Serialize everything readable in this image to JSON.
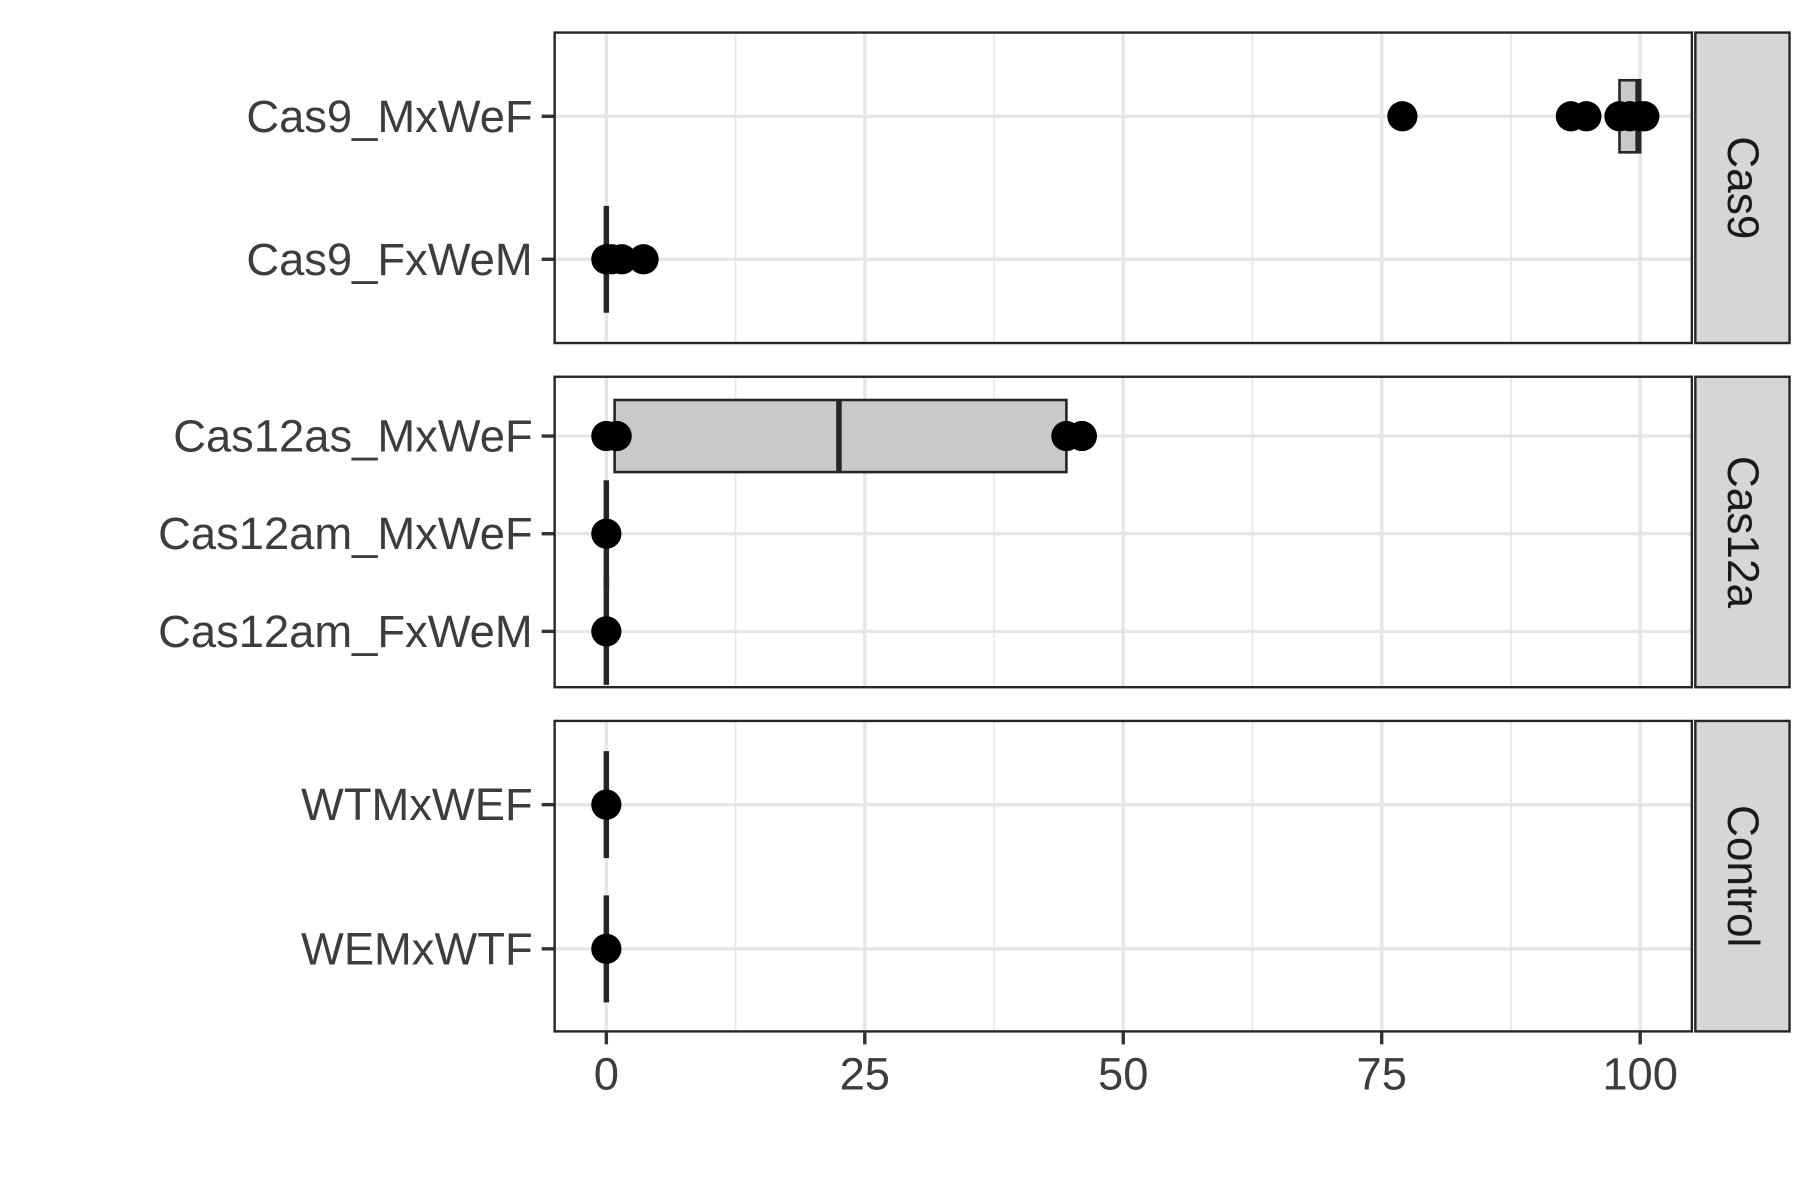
{
  "chart_data": {
    "type": "boxplot",
    "orientation": "horizontal",
    "facet": "rows",
    "xlim": [
      -5,
      105
    ],
    "x_ticks": [
      0,
      25,
      50,
      75,
      100
    ],
    "x_tick_labels": [
      "0",
      "25",
      "50",
      "75",
      "100"
    ],
    "xlabel": "",
    "ylabel": "",
    "grid": true,
    "legend": "none",
    "colors": {
      "box_fill": "#c9c9c9",
      "outline": "#262626",
      "point": "#000000",
      "grid": "#e6e6e6",
      "strip_fill": "#d6d6d6"
    },
    "panels": [
      {
        "label": "Cas9",
        "groups": [
          {
            "name": "Cas9_MxWeF",
            "box": {
              "q1": 98,
              "median": 99.8,
              "q3": 100
            },
            "points": [
              77,
              93.3,
              94.8,
              98,
              99,
              100,
              100.4
            ]
          },
          {
            "name": "Cas9_FxWeM",
            "box": {
              "q1": 0,
              "median": 0,
              "q3": 0
            },
            "points": [
              0,
              0.5,
              1.5,
              3.6
            ]
          }
        ]
      },
      {
        "label": "Cas12a",
        "groups": [
          {
            "name": "Cas12as_MxWeF",
            "box": {
              "q1": 0.8,
              "median": 22.5,
              "q3": 44.5
            },
            "points": [
              0,
              1,
              44.5,
              46
            ]
          },
          {
            "name": "Cas12am_MxWeF",
            "box": {
              "q1": 0,
              "median": 0,
              "q3": 0
            },
            "points": [
              0
            ]
          },
          {
            "name": "Cas12am_FxWeM",
            "box": {
              "q1": 0,
              "median": 0,
              "q3": 0
            },
            "points": [
              0
            ]
          }
        ]
      },
      {
        "label": "Control",
        "groups": [
          {
            "name": "WTMxWEF",
            "box": {
              "q1": 0,
              "median": 0,
              "q3": 0
            },
            "points": [
              0
            ]
          },
          {
            "name": "WEMxWTF",
            "box": {
              "q1": 0,
              "median": 0,
              "q3": 0
            },
            "points": [
              0
            ]
          }
        ]
      }
    ]
  }
}
